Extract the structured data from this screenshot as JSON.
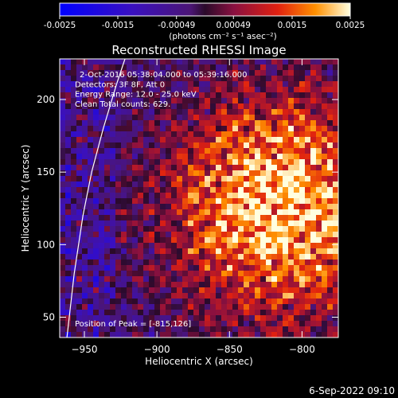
{
  "chart_data": {
    "type": "heatmap",
    "title": "Reconstructed RHESSI Image",
    "xlabel": "Heliocentric X (arcsec)",
    "ylabel": "Heliocentric Y (arcsec)",
    "xlim": [
      -967,
      -775
    ],
    "ylim": [
      36,
      228
    ],
    "x_ticks": [
      -950,
      -900,
      -850,
      -800
    ],
    "y_ticks": [
      50,
      100,
      150,
      200
    ],
    "colorbar": {
      "range": [
        -0.0025,
        0.0025
      ],
      "tick_values": [
        -0.0025,
        -0.0015,
        -0.00049,
        0.00049,
        0.0015,
        0.0025
      ],
      "tick_labels": [
        "-0.0025",
        "-0.0015",
        "-0.00049",
        "0.00049",
        "0.0015",
        "0.0025"
      ],
      "unit_label": "(photons cm⁻² s⁻¹ asec⁻²)"
    },
    "annotations": [
      "2-Oct-2016 05:38:04.000 to 05:39:16.000",
      "Detectors: 3F 8F, Att 0",
      "Energy Range: 12.0 - 25.0 keV",
      "Clean     Total counts: 629."
    ],
    "peak_label": "Position of Peak = [-815,126]",
    "peak": [
      -815,
      126
    ],
    "limb_curve": [
      [
        -962,
        36
      ],
      [
        -957,
        80
      ],
      [
        -951,
        120
      ],
      [
        -945,
        150
      ],
      [
        -937,
        180
      ],
      [
        -928,
        210
      ],
      [
        -922,
        228
      ]
    ],
    "timestamp": "6-Sep-2022 09:10",
    "colors": {
      "background": "#000000",
      "text": "#ffffff"
    }
  }
}
